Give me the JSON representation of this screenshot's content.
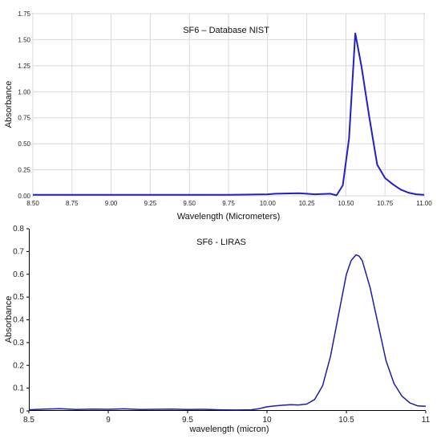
{
  "chart_data": [
    {
      "type": "line",
      "title": "SF6 – Database NIST",
      "xlabel": "Wavelength (Micrometers)",
      "ylabel": "Absorbance",
      "xlim": [
        8.5,
        11.0
      ],
      "ylim": [
        0,
        1.75
      ],
      "xticks": [
        "8.50",
        "8.75",
        "9.00",
        "9.25",
        "9.50",
        "9.75",
        "10.00",
        "10.25",
        "10.50",
        "10.75",
        "11.00"
      ],
      "yticks": [
        "0.00",
        "0.25",
        "0.50",
        "0.75",
        "1.00",
        "1.25",
        "1.50",
        "1.75"
      ],
      "grid": true,
      "color": "#2020c8",
      "series": [
        {
          "x": [
            8.5,
            9.0,
            9.5,
            9.75,
            10.0,
            10.05,
            10.2,
            10.25,
            10.3,
            10.4,
            10.44,
            10.48,
            10.52,
            10.56,
            10.6,
            10.65,
            10.7,
            10.75,
            10.8,
            10.85,
            10.9,
            10.95,
            11.0
          ],
          "y": [
            0.01,
            0.01,
            0.01,
            0.01,
            0.015,
            0.02,
            0.025,
            0.02,
            0.015,
            0.02,
            0.005,
            0.1,
            0.55,
            1.56,
            1.24,
            0.75,
            0.3,
            0.17,
            0.11,
            0.06,
            0.03,
            0.015,
            0.01
          ]
        }
      ]
    },
    {
      "type": "line",
      "title": "SF6 - LIRAS",
      "xlabel": "wavelength (micron)",
      "ylabel": "Absorbance",
      "xlim": [
        8.5,
        11
      ],
      "ylim": [
        0,
        0.8
      ],
      "xticks": [
        "8.5",
        "9",
        "9.5",
        "10",
        "10.5",
        "11"
      ],
      "yticks": [
        "0",
        "0.1",
        "0.2",
        "0.3",
        "0.4",
        "0.5",
        "0.6",
        "0.7",
        "0.8"
      ],
      "grid": false,
      "color": "#1c1ca8",
      "series": [
        {
          "x": [
            8.5,
            8.6,
            8.7,
            8.8,
            8.9,
            9.0,
            9.1,
            9.2,
            9.3,
            9.4,
            9.5,
            9.6,
            9.7,
            9.8,
            9.9,
            9.95,
            10.0,
            10.05,
            10.1,
            10.15,
            10.2,
            10.25,
            10.3,
            10.35,
            10.4,
            10.45,
            10.5,
            10.53,
            10.56,
            10.58,
            10.6,
            10.65,
            10.7,
            10.75,
            10.8,
            10.85,
            10.9,
            10.95,
            11.0
          ],
          "y": [
            0.005,
            0.008,
            0.01,
            0.006,
            0.008,
            0.007,
            0.009,
            0.006,
            0.007,
            0.008,
            0.006,
            0.007,
            0.005,
            0.004,
            0.005,
            0.01,
            0.018,
            0.022,
            0.025,
            0.027,
            0.026,
            0.03,
            0.05,
            0.11,
            0.24,
            0.42,
            0.6,
            0.66,
            0.685,
            0.68,
            0.66,
            0.54,
            0.38,
            0.22,
            0.12,
            0.065,
            0.035,
            0.022,
            0.02
          ]
        }
      ]
    }
  ]
}
